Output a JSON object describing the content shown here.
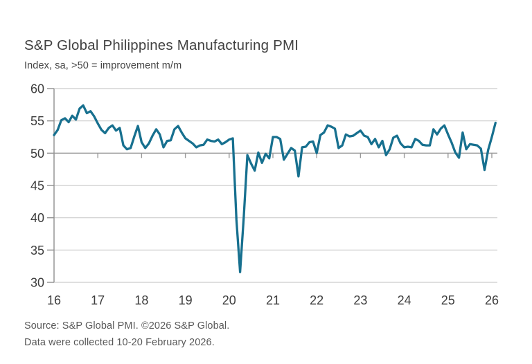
{
  "header": {
    "title": "S&P Global Philippines Manufacturing PMI",
    "subtitle": "Index, sa, >50 = improvement m/m"
  },
  "source": {
    "line1": "Source: S&P Global PMI. ©2026 S&P Global.",
    "line2": "Data were collected 10-20 February 2026."
  },
  "chart_data": {
    "type": "line",
    "title": "S&P Global Philippines Manufacturing PMI",
    "subtitle": "Index, sa, >50 = improvement m/m",
    "frequency": "monthly",
    "x_start": "2016-01",
    "x_end": "2026-02",
    "x_axis": {
      "tick_labels": [
        "16",
        "17",
        "18",
        "19",
        "20",
        "21",
        "22",
        "23",
        "24",
        "25",
        "26"
      ],
      "tick_position": "January of each year"
    },
    "y_axis": {
      "min": 30,
      "max": 60,
      "ticks": [
        30,
        35,
        40,
        45,
        50,
        55,
        60
      ],
      "baseline": 50
    },
    "grid": "horizontal only, tick marks hang below the 50 baseline at each year",
    "legend": "none",
    "series": [
      {
        "name": "Philippines Manufacturing PMI (sa)",
        "values": [
          52.8,
          53.6,
          55.1,
          55.4,
          54.8,
          55.8,
          55.2,
          56.9,
          57.4,
          56.2,
          56.5,
          55.7,
          54.6,
          53.6,
          53.1,
          53.9,
          54.3,
          53.5,
          53.9,
          51.2,
          50.6,
          50.8,
          52.6,
          54.2,
          51.7,
          50.8,
          51.5,
          52.7,
          53.7,
          52.9,
          50.9,
          51.9,
          52.0,
          53.7,
          54.2,
          53.2,
          52.3,
          51.9,
          51.5,
          50.9,
          51.2,
          51.3,
          52.1,
          51.9,
          51.8,
          52.1,
          51.4,
          51.7,
          52.1,
          52.3,
          39.7,
          31.6,
          40.1,
          49.7,
          48.4,
          47.3,
          50.1,
          48.5,
          49.9,
          49.2,
          52.5,
          52.5,
          52.2,
          49.0,
          49.9,
          50.8,
          50.4,
          46.4,
          50.9,
          51.0,
          51.7,
          51.8,
          50.0,
          52.8,
          53.2,
          54.3,
          54.1,
          53.8,
          50.8,
          51.2,
          52.9,
          52.6,
          52.7,
          53.1,
          53.5,
          52.7,
          52.5,
          51.4,
          52.2,
          50.9,
          51.9,
          49.7,
          50.6,
          52.4,
          52.7,
          51.5,
          50.9,
          51.0,
          50.9,
          52.2,
          51.9,
          51.3,
          51.2,
          51.2,
          53.7,
          52.9,
          53.8,
          54.3,
          52.9,
          51.6,
          50.1,
          49.3,
          53.2,
          50.6,
          51.4,
          51.3,
          51.2,
          50.7,
          47.4,
          50.5,
          52.5,
          54.7
        ]
      }
    ],
    "style": {
      "line_color": "#17708F",
      "gridline_color": "#cccccc",
      "baseline_color": "#9a9a9a",
      "axis_color": "#8f8f8f",
      "tick_text_color": "#3d3d3d"
    }
  }
}
